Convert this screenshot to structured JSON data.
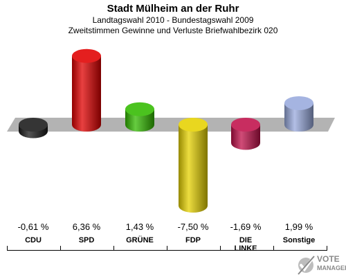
{
  "chart_data": {
    "type": "bar",
    "title": "Stadt Mülheim an der Ruhr",
    "subtitle_line1": "Landtagswahl 2010 - Bundestagswahl 2009",
    "subtitle_line2": "Zweitstimmen Gewinne und Verluste Briefwahlbezirk 020",
    "categories": [
      "CDU",
      "SPD",
      "GRÜNE",
      "FDP",
      "DIE LINKE",
      "Sonstige"
    ],
    "category_lines": [
      [
        "CDU"
      ],
      [
        "SPD"
      ],
      [
        "GRÜNE"
      ],
      [
        "FDP"
      ],
      [
        "DIE",
        "LINKE"
      ],
      [
        "Sonstige"
      ]
    ],
    "values": [
      -0.61,
      6.36,
      1.43,
      -7.5,
      -1.69,
      1.99
    ],
    "value_labels": [
      "-0,61 %",
      "6,36 %",
      "1,43 %",
      "-7,50 %",
      "-1,69 %",
      "1,99 %"
    ],
    "colors": [
      "#1a1a1a",
      "#e00000",
      "#33bb00",
      "#e6d200",
      "#c0104a",
      "#99aadd"
    ],
    "baseline": 0,
    "grid": false,
    "legend": "none"
  },
  "logo": {
    "line1": "VOTE",
    "line2": "MANAGER"
  }
}
